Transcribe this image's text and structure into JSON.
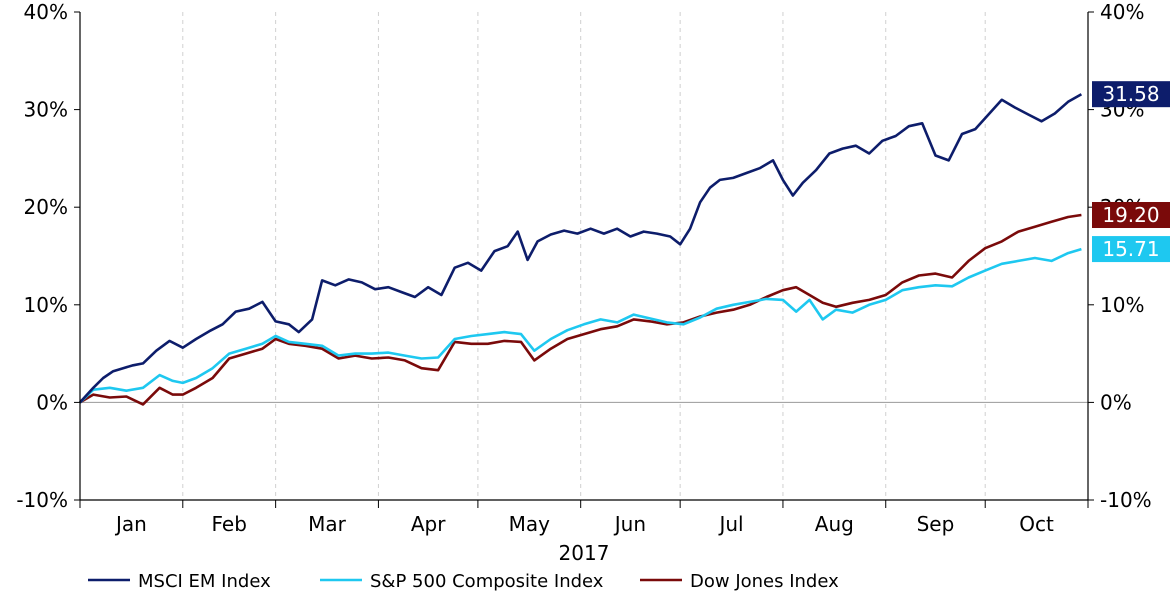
{
  "chart_data": {
    "type": "line",
    "title": "",
    "xlabel": "2017",
    "ylabel": "",
    "ylim": [
      -10,
      40
    ],
    "y_ticks": [
      "-10%",
      "0%",
      "10%",
      "20%",
      "30%",
      "40%"
    ],
    "y_axis_sides": [
      "left",
      "right"
    ],
    "months": [
      "Jan",
      "Feb",
      "Mar",
      "Apr",
      "May",
      "Jun",
      "Jul",
      "Aug",
      "Sep",
      "Oct"
    ],
    "grid": "vertical dashed at month boundaries",
    "legend_position": "bottom",
    "colors": {
      "msci": "#0d1d6b",
      "sp500": "#1ec8f0",
      "dow": "#7a0a0a",
      "zero_line": "#9a9a9a",
      "grid": "#d0d0d0"
    },
    "series": [
      {
        "name": "MSCI EM Index",
        "color": "#0d1d6b",
        "end_label": "31.58",
        "points": [
          [
            "2017-01-01",
            0
          ],
          [
            "2017-01-05",
            1.5
          ],
          [
            "2017-01-08",
            2.5
          ],
          [
            "2017-01-11",
            3.2
          ],
          [
            "2017-01-14",
            3.5
          ],
          [
            "2017-01-17",
            3.8
          ],
          [
            "2017-01-20",
            4.0
          ],
          [
            "2017-01-24",
            5.3
          ],
          [
            "2017-01-28",
            6.3
          ],
          [
            "2017-02-01",
            5.6
          ],
          [
            "2017-02-05",
            6.5
          ],
          [
            "2017-02-09",
            7.3
          ],
          [
            "2017-02-13",
            8.0
          ],
          [
            "2017-02-17",
            9.3
          ],
          [
            "2017-02-21",
            9.6
          ],
          [
            "2017-02-25",
            10.3
          ],
          [
            "2017-03-01",
            8.3
          ],
          [
            "2017-03-05",
            8.0
          ],
          [
            "2017-03-08",
            7.2
          ],
          [
            "2017-03-12",
            8.5
          ],
          [
            "2017-03-15",
            12.5
          ],
          [
            "2017-03-19",
            12.0
          ],
          [
            "2017-03-23",
            12.6
          ],
          [
            "2017-03-27",
            12.3
          ],
          [
            "2017-03-31",
            11.6
          ],
          [
            "2017-04-04",
            11.8
          ],
          [
            "2017-04-08",
            11.3
          ],
          [
            "2017-04-12",
            10.8
          ],
          [
            "2017-04-16",
            11.8
          ],
          [
            "2017-04-20",
            11.0
          ],
          [
            "2017-04-24",
            13.8
          ],
          [
            "2017-04-28",
            14.3
          ],
          [
            "2017-05-02",
            13.5
          ],
          [
            "2017-05-06",
            15.5
          ],
          [
            "2017-05-10",
            16.0
          ],
          [
            "2017-05-13",
            17.5
          ],
          [
            "2017-05-16",
            14.6
          ],
          [
            "2017-05-19",
            16.5
          ],
          [
            "2017-05-23",
            17.2
          ],
          [
            "2017-05-27",
            17.6
          ],
          [
            "2017-05-31",
            17.3
          ],
          [
            "2017-06-04",
            17.8
          ],
          [
            "2017-06-08",
            17.3
          ],
          [
            "2017-06-12",
            17.8
          ],
          [
            "2017-06-16",
            17.0
          ],
          [
            "2017-06-20",
            17.5
          ],
          [
            "2017-06-24",
            17.3
          ],
          [
            "2017-06-28",
            17.0
          ],
          [
            "2017-07-01",
            16.2
          ],
          [
            "2017-07-04",
            17.8
          ],
          [
            "2017-07-07",
            20.5
          ],
          [
            "2017-07-10",
            22.0
          ],
          [
            "2017-07-13",
            22.8
          ],
          [
            "2017-07-17",
            23.0
          ],
          [
            "2017-07-21",
            23.5
          ],
          [
            "2017-07-25",
            24.0
          ],
          [
            "2017-07-29",
            24.8
          ],
          [
            "2017-08-01",
            22.8
          ],
          [
            "2017-08-04",
            21.2
          ],
          [
            "2017-08-07",
            22.5
          ],
          [
            "2017-08-11",
            23.8
          ],
          [
            "2017-08-15",
            25.5
          ],
          [
            "2017-08-19",
            26.0
          ],
          [
            "2017-08-23",
            26.3
          ],
          [
            "2017-08-27",
            25.5
          ],
          [
            "2017-08-31",
            26.8
          ],
          [
            "2017-09-04",
            27.3
          ],
          [
            "2017-09-08",
            28.3
          ],
          [
            "2017-09-12",
            28.6
          ],
          [
            "2017-09-16",
            25.3
          ],
          [
            "2017-09-20",
            24.8
          ],
          [
            "2017-09-24",
            27.5
          ],
          [
            "2017-09-28",
            28.0
          ],
          [
            "2017-10-02",
            29.5
          ],
          [
            "2017-10-06",
            31.0
          ],
          [
            "2017-10-10",
            30.2
          ],
          [
            "2017-10-14",
            29.5
          ],
          [
            "2017-10-18",
            28.8
          ],
          [
            "2017-10-22",
            29.6
          ],
          [
            "2017-10-26",
            30.8
          ],
          [
            "2017-10-30",
            31.58
          ]
        ]
      },
      {
        "name": "S&P 500 Composite Index",
        "color": "#1ec8f0",
        "end_label": "15.71",
        "points": [
          [
            "2017-01-01",
            0
          ],
          [
            "2017-01-05",
            1.3
          ],
          [
            "2017-01-10",
            1.5
          ],
          [
            "2017-01-15",
            1.2
          ],
          [
            "2017-01-20",
            1.5
          ],
          [
            "2017-01-25",
            2.8
          ],
          [
            "2017-01-29",
            2.2
          ],
          [
            "2017-02-01",
            2.0
          ],
          [
            "2017-02-05",
            2.5
          ],
          [
            "2017-02-10",
            3.5
          ],
          [
            "2017-02-15",
            5.0
          ],
          [
            "2017-02-20",
            5.5
          ],
          [
            "2017-02-25",
            6.0
          ],
          [
            "2017-03-01",
            6.8
          ],
          [
            "2017-03-05",
            6.2
          ],
          [
            "2017-03-10",
            6.0
          ],
          [
            "2017-03-15",
            5.8
          ],
          [
            "2017-03-20",
            4.8
          ],
          [
            "2017-03-25",
            5.0
          ],
          [
            "2017-03-30",
            5.0
          ],
          [
            "2017-04-04",
            5.1
          ],
          [
            "2017-04-09",
            4.8
          ],
          [
            "2017-04-14",
            4.5
          ],
          [
            "2017-04-19",
            4.6
          ],
          [
            "2017-04-24",
            6.5
          ],
          [
            "2017-04-29",
            6.8
          ],
          [
            "2017-05-04",
            7.0
          ],
          [
            "2017-05-09",
            7.2
          ],
          [
            "2017-05-14",
            7.0
          ],
          [
            "2017-05-18",
            5.3
          ],
          [
            "2017-05-23",
            6.5
          ],
          [
            "2017-05-28",
            7.4
          ],
          [
            "2017-06-02",
            8.0
          ],
          [
            "2017-06-07",
            8.5
          ],
          [
            "2017-06-12",
            8.2
          ],
          [
            "2017-06-17",
            9.0
          ],
          [
            "2017-06-22",
            8.6
          ],
          [
            "2017-06-27",
            8.2
          ],
          [
            "2017-07-02",
            8.0
          ],
          [
            "2017-07-07",
            8.7
          ],
          [
            "2017-07-12",
            9.6
          ],
          [
            "2017-07-17",
            10.0
          ],
          [
            "2017-07-22",
            10.3
          ],
          [
            "2017-07-27",
            10.6
          ],
          [
            "2017-08-01",
            10.5
          ],
          [
            "2017-08-05",
            9.3
          ],
          [
            "2017-08-09",
            10.5
          ],
          [
            "2017-08-13",
            8.5
          ],
          [
            "2017-08-17",
            9.5
          ],
          [
            "2017-08-22",
            9.2
          ],
          [
            "2017-08-27",
            10.0
          ],
          [
            "2017-09-01",
            10.5
          ],
          [
            "2017-09-06",
            11.5
          ],
          [
            "2017-09-11",
            11.8
          ],
          [
            "2017-09-16",
            12.0
          ],
          [
            "2017-09-21",
            11.9
          ],
          [
            "2017-09-26",
            12.8
          ],
          [
            "2017-10-01",
            13.5
          ],
          [
            "2017-10-06",
            14.2
          ],
          [
            "2017-10-11",
            14.5
          ],
          [
            "2017-10-16",
            14.8
          ],
          [
            "2017-10-21",
            14.5
          ],
          [
            "2017-10-26",
            15.3
          ],
          [
            "2017-10-30",
            15.71
          ]
        ]
      },
      {
        "name": "Dow Jones Index",
        "color": "#7a0a0a",
        "end_label": "19.20",
        "points": [
          [
            "2017-01-01",
            0
          ],
          [
            "2017-01-05",
            0.8
          ],
          [
            "2017-01-10",
            0.5
          ],
          [
            "2017-01-15",
            0.6
          ],
          [
            "2017-01-20",
            -0.2
          ],
          [
            "2017-01-25",
            1.5
          ],
          [
            "2017-01-29",
            0.8
          ],
          [
            "2017-02-01",
            0.8
          ],
          [
            "2017-02-05",
            1.5
          ],
          [
            "2017-02-10",
            2.5
          ],
          [
            "2017-02-15",
            4.5
          ],
          [
            "2017-02-20",
            5.0
          ],
          [
            "2017-02-25",
            5.5
          ],
          [
            "2017-03-01",
            6.5
          ],
          [
            "2017-03-05",
            6.0
          ],
          [
            "2017-03-10",
            5.8
          ],
          [
            "2017-03-15",
            5.5
          ],
          [
            "2017-03-20",
            4.5
          ],
          [
            "2017-03-25",
            4.8
          ],
          [
            "2017-03-30",
            4.5
          ],
          [
            "2017-04-04",
            4.6
          ],
          [
            "2017-04-09",
            4.3
          ],
          [
            "2017-04-14",
            3.5
          ],
          [
            "2017-04-19",
            3.3
          ],
          [
            "2017-04-24",
            6.2
          ],
          [
            "2017-04-29",
            6.0
          ],
          [
            "2017-05-04",
            6.0
          ],
          [
            "2017-05-09",
            6.3
          ],
          [
            "2017-05-14",
            6.2
          ],
          [
            "2017-05-18",
            4.3
          ],
          [
            "2017-05-23",
            5.5
          ],
          [
            "2017-05-28",
            6.5
          ],
          [
            "2017-06-02",
            7.0
          ],
          [
            "2017-06-07",
            7.5
          ],
          [
            "2017-06-12",
            7.8
          ],
          [
            "2017-06-17",
            8.5
          ],
          [
            "2017-06-22",
            8.3
          ],
          [
            "2017-06-27",
            8.0
          ],
          [
            "2017-07-02",
            8.2
          ],
          [
            "2017-07-07",
            8.8
          ],
          [
            "2017-07-12",
            9.2
          ],
          [
            "2017-07-17",
            9.5
          ],
          [
            "2017-07-22",
            10.0
          ],
          [
            "2017-07-27",
            10.8
          ],
          [
            "2017-08-01",
            11.5
          ],
          [
            "2017-08-05",
            11.8
          ],
          [
            "2017-08-09",
            11.0
          ],
          [
            "2017-08-13",
            10.2
          ],
          [
            "2017-08-17",
            9.8
          ],
          [
            "2017-08-22",
            10.2
          ],
          [
            "2017-08-27",
            10.5
          ],
          [
            "2017-09-01",
            11.0
          ],
          [
            "2017-09-06",
            12.3
          ],
          [
            "2017-09-11",
            13.0
          ],
          [
            "2017-09-16",
            13.2
          ],
          [
            "2017-09-21",
            12.8
          ],
          [
            "2017-09-26",
            14.5
          ],
          [
            "2017-10-01",
            15.8
          ],
          [
            "2017-10-06",
            16.5
          ],
          [
            "2017-10-11",
            17.5
          ],
          [
            "2017-10-16",
            18.0
          ],
          [
            "2017-10-21",
            18.5
          ],
          [
            "2017-10-26",
            19.0
          ],
          [
            "2017-10-30",
            19.2
          ]
        ]
      }
    ]
  }
}
